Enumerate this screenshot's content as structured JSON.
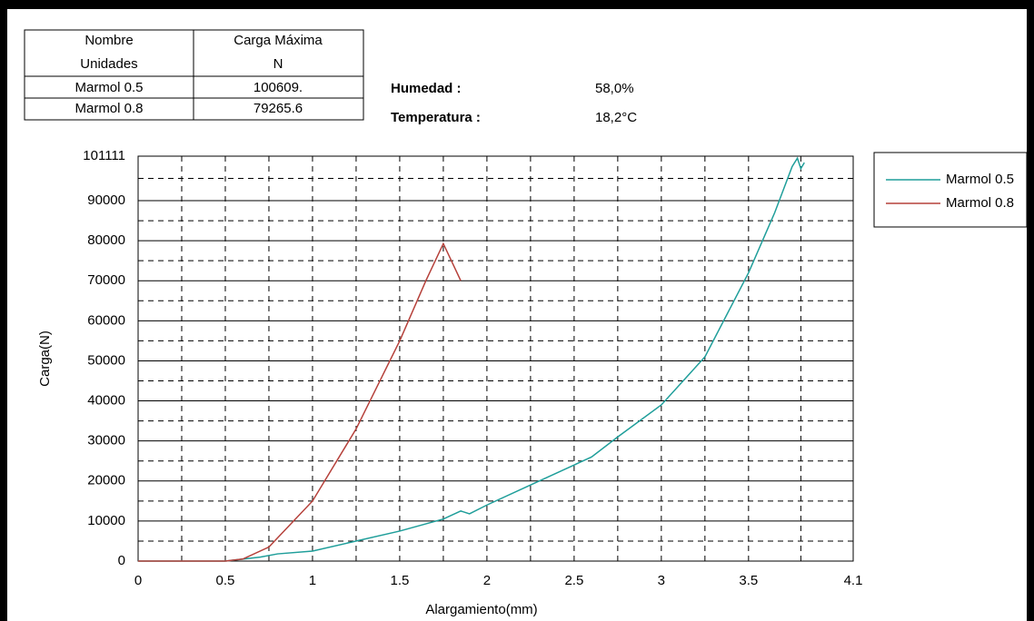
{
  "table": {
    "header": [
      [
        "Nombre",
        "Carga Máxima"
      ],
      [
        "Unidades",
        "N"
      ]
    ],
    "rows": [
      [
        "Marmol 0.5",
        "100609."
      ],
      [
        "Marmol 0.8",
        "79265.6"
      ]
    ]
  },
  "conditions": [
    {
      "label": "Humedad :",
      "value": "58,0%"
    },
    {
      "label": "Temperatura :",
      "value": "18,2°C"
    }
  ],
  "chart_data": {
    "type": "line",
    "xlabel": "Alargamiento(mm)",
    "ylabel": "Carga(N)",
    "xlim": [
      0,
      4.1
    ],
    "xticks": [
      0,
      0.5,
      1,
      1.5,
      2,
      2.5,
      3,
      3.5,
      4.1
    ],
    "ylim": [
      0,
      101111
    ],
    "yticks": [
      0,
      10000,
      20000,
      30000,
      40000,
      50000,
      60000,
      70000,
      80000,
      90000,
      101111
    ],
    "grid": true,
    "legend": "outside-right",
    "series": [
      {
        "name": "Marmol 0.5",
        "color": "#1f9e9a",
        "x": [
          0,
          0.5,
          0.7,
          0.8,
          1,
          1.2,
          1.5,
          1.75,
          1.85,
          1.9,
          2,
          2.25,
          2.5,
          2.6,
          2.75,
          3,
          3.25,
          3.5,
          3.65,
          3.75,
          3.78,
          3.8,
          3.82
        ],
        "values": [
          0,
          0,
          1000,
          1800,
          2500,
          4500,
          7500,
          10500,
          12500,
          11800,
          14000,
          19000,
          24000,
          26000,
          31000,
          39000,
          51000,
          72000,
          87000,
          98500,
          100609,
          98000,
          99500
        ]
      },
      {
        "name": "Marmol 0.8",
        "color": "#b5403a",
        "x": [
          0,
          0.5,
          0.6,
          0.75,
          1,
          1.25,
          1.5,
          1.65,
          1.75,
          1.85
        ],
        "values": [
          0,
          0,
          500,
          3500,
          15000,
          33000,
          55000,
          70000,
          79265.6,
          70000
        ]
      }
    ]
  }
}
